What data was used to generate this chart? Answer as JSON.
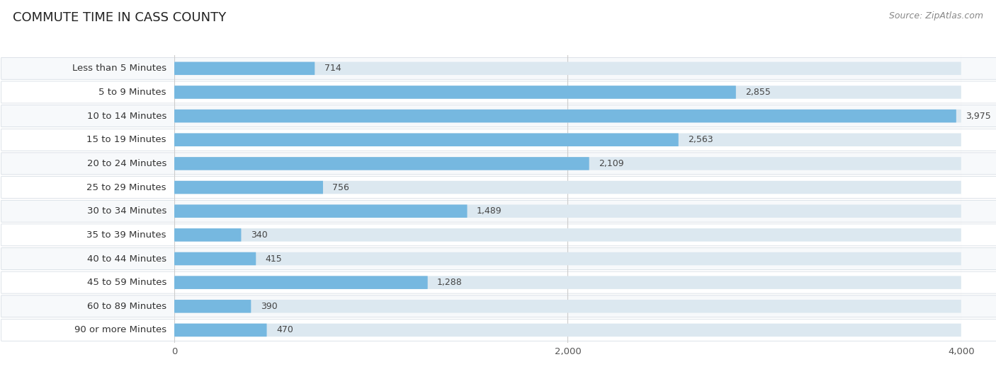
{
  "title": "Commute Time in Cass County",
  "title_display": "COMMUTE TIME IN CASS COUNTY",
  "source": "Source: ZipAtlas.com",
  "categories": [
    "Less than 5 Minutes",
    "5 to 9 Minutes",
    "10 to 14 Minutes",
    "15 to 19 Minutes",
    "20 to 24 Minutes",
    "25 to 29 Minutes",
    "30 to 34 Minutes",
    "35 to 39 Minutes",
    "40 to 44 Minutes",
    "45 to 59 Minutes",
    "60 to 89 Minutes",
    "90 or more Minutes"
  ],
  "values": [
    714,
    2855,
    3975,
    2563,
    2109,
    756,
    1489,
    340,
    415,
    1288,
    390,
    470
  ],
  "bar_color": "#76b8e0",
  "bar_bg_color": "#dce8f0",
  "bg_color": "#ffffff",
  "row_even_color": "#f7f9fb",
  "row_odd_color": "#ffffff",
  "title_color": "#222222",
  "label_color": "#333333",
  "value_color": "#444444",
  "source_color": "#888888",
  "grid_color": "#cccccc",
  "xlim_max": 4200,
  "data_max": 4000,
  "xticks": [
    0,
    2000,
    4000
  ],
  "title_fontsize": 13,
  "label_fontsize": 9.5,
  "value_fontsize": 9,
  "source_fontsize": 9
}
